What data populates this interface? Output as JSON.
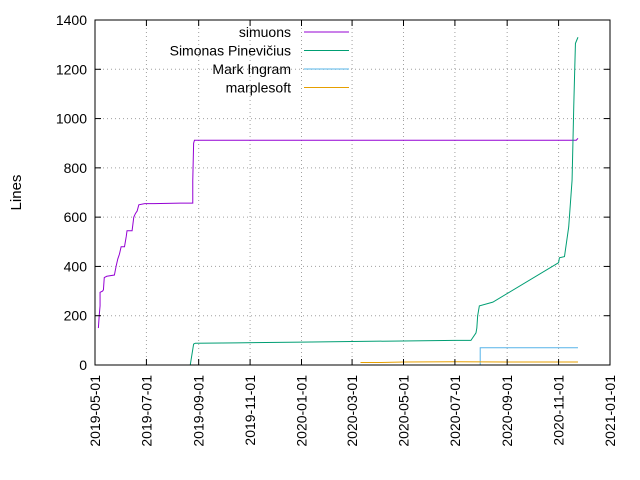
{
  "chart_data": {
    "type": "line",
    "title": "",
    "xlabel": "",
    "ylabel": "Lines",
    "x_type": "date",
    "xlim": [
      "2019-05-01",
      "2021-01-01"
    ],
    "ylim": [
      0,
      1400
    ],
    "x_ticks": [
      "2019-05-01",
      "2019-07-01",
      "2019-09-01",
      "2019-11-01",
      "2020-01-01",
      "2020-03-01",
      "2020-05-01",
      "2020-07-01",
      "2020-09-01",
      "2020-11-01",
      "2021-01-01"
    ],
    "y_ticks": [
      0,
      200,
      400,
      600,
      800,
      1000,
      1200,
      1400
    ],
    "grid": true,
    "legend_position": "top-left",
    "series": [
      {
        "name": "simuons",
        "color": "#9400d3",
        "points": [
          [
            "2019-05-05",
            150
          ],
          [
            "2019-05-06",
            200
          ],
          [
            "2019-05-07",
            240
          ],
          [
            "2019-05-07",
            295
          ],
          [
            "2019-05-10",
            300
          ],
          [
            "2019-05-11",
            305
          ],
          [
            "2019-05-12",
            355
          ],
          [
            "2019-05-15",
            360
          ],
          [
            "2019-05-24",
            365
          ],
          [
            "2019-05-26",
            400
          ],
          [
            "2019-05-28",
            430
          ],
          [
            "2019-05-30",
            450
          ],
          [
            "2019-06-01",
            480
          ],
          [
            "2019-06-05",
            480
          ],
          [
            "2019-06-07",
            520
          ],
          [
            "2019-06-08",
            545
          ],
          [
            "2019-06-14",
            545
          ],
          [
            "2019-06-16",
            600
          ],
          [
            "2019-06-18",
            615
          ],
          [
            "2019-06-20",
            625
          ],
          [
            "2019-06-22",
            650
          ],
          [
            "2019-06-29",
            655
          ],
          [
            "2019-07-10",
            655
          ],
          [
            "2019-08-10",
            657
          ],
          [
            "2019-08-25",
            657
          ],
          [
            "2019-08-25",
            750
          ],
          [
            "2019-08-26",
            900
          ],
          [
            "2019-08-27",
            912
          ],
          [
            "2020-11-22",
            912
          ],
          [
            "2020-11-24",
            920
          ]
        ]
      },
      {
        "name": "Simonas Pinevičius",
        "color": "#009e73",
        "points": [
          [
            "2019-08-22",
            0
          ],
          [
            "2019-08-26",
            85
          ],
          [
            "2019-08-28",
            88
          ],
          [
            "2019-10-15",
            90
          ],
          [
            "2020-01-01",
            93
          ],
          [
            "2020-07-01",
            100
          ],
          [
            "2020-07-20",
            100
          ],
          [
            "2020-07-26",
            130
          ],
          [
            "2020-07-27",
            150
          ],
          [
            "2020-07-28",
            200
          ],
          [
            "2020-07-30",
            240
          ],
          [
            "2020-08-15",
            255
          ],
          [
            "2020-11-01",
            415
          ],
          [
            "2020-11-02",
            435
          ],
          [
            "2020-11-08",
            440
          ],
          [
            "2020-11-13",
            560
          ],
          [
            "2020-11-17",
            750
          ],
          [
            "2020-11-19",
            1050
          ],
          [
            "2020-11-20",
            1180
          ],
          [
            "2020-11-21",
            1305
          ],
          [
            "2020-11-24",
            1330
          ]
        ]
      },
      {
        "name": "Mark Ingram",
        "color": "#56b4e9",
        "points": [
          [
            "2020-07-31",
            0
          ],
          [
            "2020-07-31",
            70
          ],
          [
            "2020-11-24",
            70
          ]
        ]
      },
      {
        "name": "marplesoft",
        "color": "#e69f00",
        "points": [
          [
            "2020-03-11",
            10
          ],
          [
            "2020-04-01",
            10
          ],
          [
            "2020-05-01",
            12
          ],
          [
            "2020-07-01",
            13
          ],
          [
            "2020-09-01",
            12
          ],
          [
            "2020-11-24",
            12
          ]
        ]
      }
    ]
  }
}
